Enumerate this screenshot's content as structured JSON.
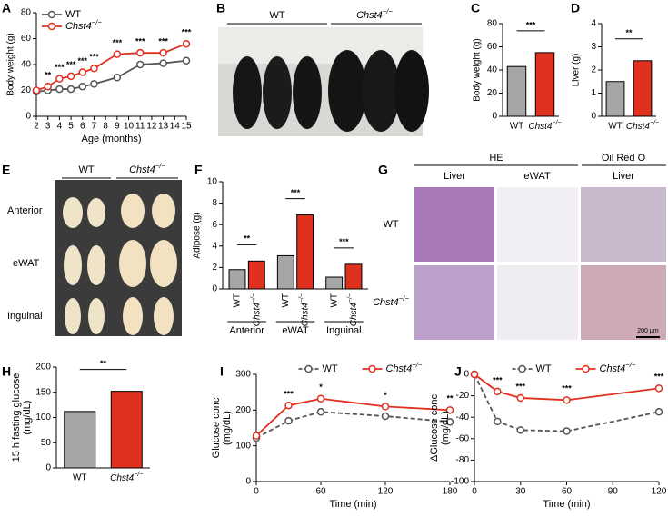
{
  "panel_letters": [
    "A",
    "B",
    "C",
    "D",
    "E",
    "F",
    "G",
    "H",
    "I",
    "J"
  ],
  "photos": {
    "B": {
      "columns": [
        "WT",
        "Chst4−/−"
      ]
    },
    "E": {
      "columns": [
        "WT",
        "Chst4−/−"
      ],
      "rows": [
        "Anterior",
        "eWAT",
        "Inguinal"
      ]
    },
    "G": {
      "groups": [
        "HE",
        "Oil Red O"
      ],
      "columns": [
        "Liver",
        "eWAT",
        "Liver"
      ],
      "rows": [
        "WT",
        "Chst4−/−"
      ],
      "scale_bar": "200 μm"
    }
  },
  "chart_data": [
    {
      "type": "line",
      "xlabel": "Age (months)",
      "ylabel": "Body weight (g)",
      "x": [
        2,
        3,
        4,
        5,
        6,
        7,
        9,
        11,
        13,
        15
      ],
      "xlim": [
        2,
        15
      ],
      "xticks": [
        2,
        3,
        4,
        5,
        6,
        7,
        8,
        9,
        10,
        11,
        12,
        13,
        14,
        15
      ],
      "ylim": [
        0,
        80
      ],
      "yticks": [
        0,
        20,
        40,
        60,
        80
      ],
      "legend": "upper left",
      "series": [
        {
          "name": "WT",
          "color": "#555555",
          "values": [
            19,
            20,
            21,
            21,
            23,
            25,
            30,
            40,
            41,
            43
          ]
        },
        {
          "name": "Chst4−/−",
          "color": "#e0301e",
          "values": [
            20,
            23,
            29,
            31,
            34,
            37,
            48,
            49,
            49,
            56
          ]
        }
      ],
      "annotations": [
        {
          "x": 3,
          "text": "**"
        },
        {
          "x": 4,
          "text": "***"
        },
        {
          "x": 5,
          "text": "***"
        },
        {
          "x": 6,
          "text": "***"
        },
        {
          "x": 7,
          "text": "***"
        },
        {
          "x": 9,
          "text": "***"
        },
        {
          "x": 11,
          "text": "***"
        },
        {
          "x": 13,
          "text": "***"
        },
        {
          "x": 15,
          "text": "***"
        }
      ]
    },
    {
      "type": "bar",
      "ylabel": "Body weight (g)",
      "categories": [
        "WT",
        "Chst4−/−"
      ],
      "values": [
        43,
        55
      ],
      "colors": [
        "#a6a6a6",
        "#e0301e"
      ],
      "ylim": [
        0,
        80
      ],
      "yticks": [
        0,
        20,
        40,
        60,
        80
      ],
      "significance": "***"
    },
    {
      "type": "bar",
      "ylabel": "Liver (g)",
      "categories": [
        "WT",
        "Chst4−/−"
      ],
      "values": [
        1.5,
        2.4
      ],
      "colors": [
        "#a6a6a6",
        "#e0301e"
      ],
      "ylim": [
        0,
        4
      ],
      "yticks": [
        0,
        1,
        2,
        3,
        4
      ],
      "significance": "**"
    },
    {
      "type": "grouped-bar",
      "ylabel": "Adipose (g)",
      "categories": [
        "Anterior",
        "eWAT",
        "Inguinal"
      ],
      "series": [
        {
          "name": "WT",
          "color": "#a6a6a6",
          "values": [
            1.8,
            3.1,
            1.1
          ]
        },
        {
          "name": "Chst4−/−",
          "color": "#e0301e",
          "values": [
            2.6,
            6.9,
            2.3
          ]
        }
      ],
      "ylim": [
        0,
        10
      ],
      "yticks": [
        0,
        2,
        4,
        6,
        8,
        10
      ],
      "xtick_rotation": 90,
      "significance": [
        "**",
        "***",
        "***"
      ]
    },
    {
      "type": "bar",
      "ylabel": [
        "15 h fasting glucose",
        "(mg/dL)"
      ],
      "categories": [
        "WT",
        "Chst4−/−"
      ],
      "values": [
        112,
        152
      ],
      "colors": [
        "#a6a6a6",
        "#e0301e"
      ],
      "ylim": [
        0,
        200
      ],
      "yticks": [
        0,
        50,
        100,
        150,
        200
      ],
      "significance": "**"
    },
    {
      "type": "line",
      "xlabel": "Time (min)",
      "ylabel": [
        "Glucose conc",
        "(mg/dL)"
      ],
      "x": [
        0,
        30,
        60,
        120,
        180
      ],
      "xlim": [
        0,
        180
      ],
      "xticks": [
        0,
        60,
        120,
        180
      ],
      "ylim": [
        0,
        300
      ],
      "yticks": [
        0,
        100,
        200,
        300
      ],
      "legend": "upper center",
      "series": [
        {
          "name": "WT",
          "color": "#555555",
          "linestyle": "dashed",
          "values": [
            122,
            170,
            195,
            183,
            167
          ]
        },
        {
          "name": "Chst4−/−",
          "color": "#e0301e",
          "values": [
            128,
            213,
            232,
            210,
            200
          ]
        }
      ],
      "annotations": [
        {
          "x": 30,
          "text": "***"
        },
        {
          "x": 60,
          "text": "*"
        },
        {
          "x": 120,
          "text": "*"
        },
        {
          "x": 180,
          "text": "**"
        }
      ]
    },
    {
      "type": "line",
      "xlabel": "Time (min)",
      "ylabel": [
        "ΔGlucose conc",
        "(mg/dL)"
      ],
      "x": [
        0,
        15,
        30,
        60,
        120
      ],
      "xlim": [
        0,
        120
      ],
      "xticks": [
        0,
        30,
        60,
        90,
        120
      ],
      "ylim": [
        -100,
        0
      ],
      "yticks": [
        -100,
        -80,
        -60,
        -40,
        -20,
        0
      ],
      "legend": "upper center",
      "series": [
        {
          "name": "WT",
          "color": "#555555",
          "linestyle": "dashed",
          "values": [
            0,
            -44,
            -52,
            -53,
            -35
          ]
        },
        {
          "name": "Chst4−/−",
          "color": "#e0301e",
          "values": [
            0,
            -16,
            -22,
            -24,
            -13
          ]
        }
      ],
      "annotations": [
        {
          "x": 15,
          "text": "***"
        },
        {
          "x": 30,
          "text": "***"
        },
        {
          "x": 60,
          "text": "***"
        },
        {
          "x": 120,
          "text": "***"
        }
      ]
    }
  ]
}
